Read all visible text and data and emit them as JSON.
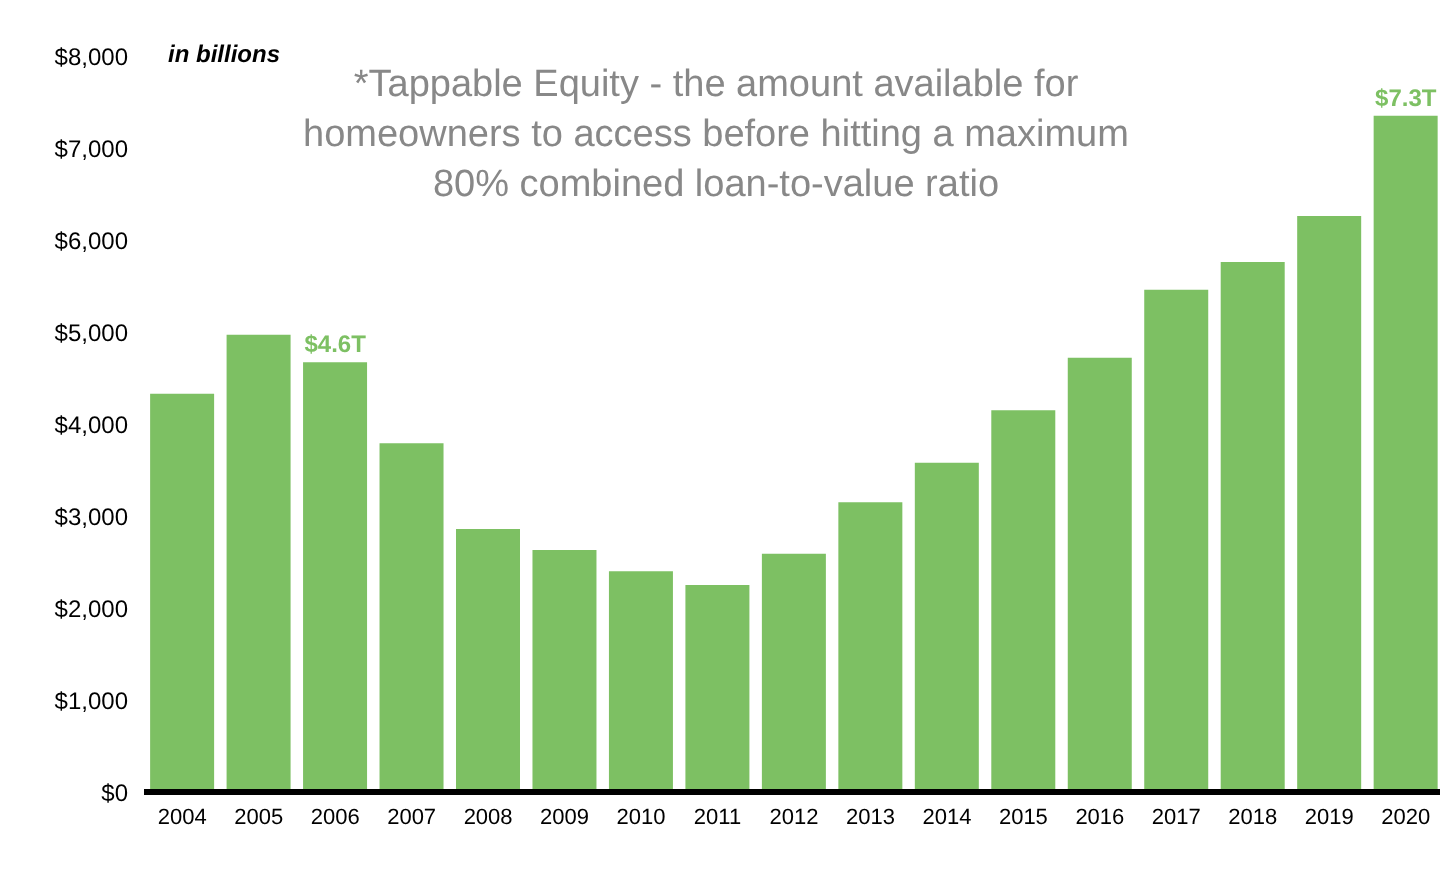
{
  "chart_data": {
    "type": "bar",
    "ylabel": "in billions",
    "annotations": [
      "*Tappable Equity - the amount available for homeowners to access before hitting a maximum 80% combined loan-to-value ratio",
      {
        "text": "$4.6T",
        "x": "2006",
        "y": 4670
      },
      {
        "text": "$7.3T",
        "x": "2020",
        "y": 7350
      }
    ],
    "categories": [
      "2004",
      "2005",
      "2006",
      "2007",
      "2008",
      "2009",
      "2010",
      "2011",
      "2012",
      "2013",
      "2014",
      "2015",
      "2016",
      "2017",
      "2018",
      "2019",
      "2020"
    ],
    "values": [
      4330,
      4970,
      4670,
      3790,
      2860,
      2630,
      2400,
      2250,
      2590,
      3150,
      3580,
      4150,
      4720,
      5460,
      5760,
      6260,
      7350
    ],
    "color": "#7dc063",
    "ylim": [
      0,
      8000
    ],
    "yticks": [
      {
        "value": 0,
        "label": "$0"
      },
      {
        "value": 1000,
        "label": "$1,000"
      },
      {
        "value": 2000,
        "label": "$2,000"
      },
      {
        "value": 3000,
        "label": "$3,000"
      },
      {
        "value": 4000,
        "label": "$4,000"
      },
      {
        "value": 5000,
        "label": "$5,000"
      },
      {
        "value": 6000,
        "label": "$6,000"
      },
      {
        "value": 7000,
        "label": "$7,000"
      },
      {
        "value": 8000,
        "label": "$8,000"
      }
    ],
    "grid": false,
    "legend": false
  }
}
